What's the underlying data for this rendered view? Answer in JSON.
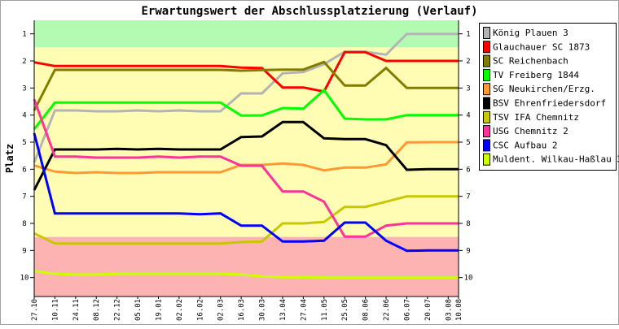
{
  "chart_data": {
    "type": "line",
    "title": "Erwartungswert der Abschlussplatzierung (Verlauf)",
    "ylabel": "Platz",
    "xlabel": "",
    "ylim": [
      0.5,
      10.7
    ],
    "y_inverted": true,
    "yticks": [
      1,
      2,
      3,
      4,
      5,
      6,
      7,
      8,
      9,
      10
    ],
    "categories": [
      "27.10",
      "10.11",
      "24.11",
      "08.12",
      "22.12",
      "05.01",
      "19.01",
      "02.02",
      "16.02",
      "02.03",
      "16.03",
      "30.03",
      "13.04",
      "27.04",
      "11.05",
      "25.05",
      "08.06",
      "22.06",
      "06.07",
      "20.07",
      "03.08",
      "10.08"
    ],
    "x_days": [
      0,
      14,
      28,
      42,
      56,
      70,
      84,
      98,
      112,
      126,
      140,
      154,
      168,
      182,
      196,
      210,
      224,
      238,
      252,
      266,
      280,
      287
    ],
    "bands": [
      {
        "from": 0.5,
        "to": 1.5,
        "color": "#b3fbb3"
      },
      {
        "from": 1.5,
        "to": 8.5,
        "color": "#fefdb3"
      },
      {
        "from": 8.5,
        "to": 10.7,
        "color": "#feb3b3"
      }
    ],
    "legend_position": "right",
    "series": [
      {
        "name": "König Plauen 3",
        "color": "#b4b4b4",
        "values": [
          5.75,
          3.83,
          3.83,
          3.86,
          3.86,
          3.83,
          3.86,
          3.83,
          3.86,
          3.86,
          3.2,
          3.2,
          2.46,
          2.41,
          2.12,
          1.66,
          1.66,
          1.77,
          1.0,
          1.0,
          1.0,
          1.0
        ]
      },
      {
        "name": "Glauchauer SC 1873",
        "color": "#ff0000",
        "values": [
          2.05,
          2.19,
          2.19,
          2.19,
          2.19,
          2.19,
          2.19,
          2.19,
          2.19,
          2.19,
          2.25,
          2.26,
          2.98,
          2.98,
          3.13,
          1.68,
          1.68,
          2.0,
          2.0,
          2.0,
          2.0,
          2.0
        ]
      },
      {
        "name": "SC Reichenbach",
        "color": "#827d00",
        "values": [
          3.83,
          2.33,
          2.33,
          2.33,
          2.33,
          2.33,
          2.33,
          2.33,
          2.33,
          2.33,
          2.36,
          2.34,
          2.32,
          2.32,
          2.04,
          2.91,
          2.91,
          2.26,
          3.0,
          3.0,
          3.0,
          3.0
        ]
      },
      {
        "name": "TV Freiberg 1844",
        "color": "#00ff00",
        "values": [
          4.52,
          3.54,
          3.54,
          3.54,
          3.54,
          3.54,
          3.54,
          3.54,
          3.54,
          3.54,
          4.02,
          4.01,
          3.74,
          3.76,
          3.08,
          4.13,
          4.16,
          4.16,
          4.0,
          4.0,
          4.0,
          4.0
        ]
      },
      {
        "name": "SG Neukirchen/Erzg.",
        "color": "#ff9933",
        "values": [
          5.86,
          6.09,
          6.14,
          6.11,
          6.14,
          6.14,
          6.11,
          6.11,
          6.11,
          6.11,
          5.84,
          5.84,
          5.79,
          5.84,
          6.04,
          5.94,
          5.94,
          5.82,
          5.01,
          5.0,
          5.0,
          5.0
        ]
      },
      {
        "name": "BSV Ehrenfriedersdorf",
        "color": "#000000",
        "values": [
          6.77,
          5.27,
          5.27,
          5.27,
          5.25,
          5.27,
          5.25,
          5.27,
          5.27,
          5.27,
          4.81,
          4.79,
          4.26,
          4.26,
          4.86,
          4.89,
          4.89,
          5.11,
          6.02,
          6.0,
          6.0,
          6.0
        ]
      },
      {
        "name": "TSV IFA Chemnitz",
        "color": "#c8c800",
        "values": [
          8.37,
          8.74,
          8.74,
          8.74,
          8.74,
          8.74,
          8.74,
          8.74,
          8.74,
          8.74,
          8.69,
          8.67,
          8.0,
          8.0,
          7.95,
          7.39,
          7.39,
          7.2,
          7.0,
          7.0,
          7.0,
          7.0
        ]
      },
      {
        "name": "USG Chemnitz 2",
        "color": "#ff3399",
        "values": [
          3.42,
          5.53,
          5.53,
          5.57,
          5.57,
          5.57,
          5.53,
          5.57,
          5.53,
          5.53,
          5.87,
          5.87,
          6.82,
          6.82,
          7.2,
          8.49,
          8.49,
          8.08,
          8.0,
          8.0,
          8.0,
          8.0
        ]
      },
      {
        "name": "CSC Aufbau 2",
        "color": "#0000ff",
        "values": [
          4.67,
          7.63,
          7.63,
          7.63,
          7.63,
          7.63,
          7.63,
          7.63,
          7.66,
          7.63,
          8.08,
          8.08,
          8.67,
          8.67,
          8.64,
          7.97,
          7.97,
          8.64,
          9.01,
          9.0,
          9.0,
          9.0
        ]
      },
      {
        "name": "Muldent. Wilkau-Haßlau 3",
        "color": "#ccff00",
        "values": [
          9.76,
          9.86,
          9.89,
          9.89,
          9.86,
          9.86,
          9.86,
          9.86,
          9.86,
          9.86,
          9.89,
          9.96,
          9.99,
          9.99,
          10.0,
          10.0,
          10.0,
          10.0,
          10.0,
          10.0,
          10.0,
          10.0
        ]
      }
    ]
  }
}
